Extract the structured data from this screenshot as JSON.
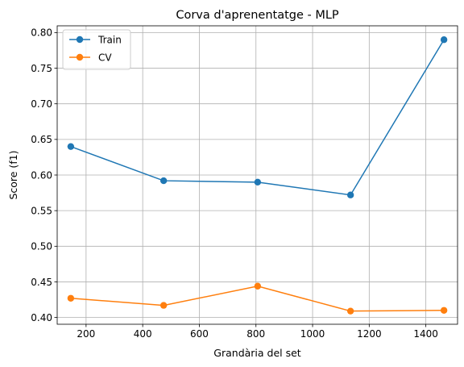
{
  "chart_data": {
    "type": "line",
    "title": "Corva d'aprenentatge - MLP",
    "xlabel": "Grandària del set",
    "ylabel": "Score (f1)",
    "xlim": [
      98,
      1512
    ],
    "ylim": [
      0.3905,
      0.8095
    ],
    "xticks": [
      200,
      400,
      600,
      800,
      1000,
      1200,
      1400
    ],
    "yticks": [
      0.4,
      0.45,
      0.5,
      0.55,
      0.6,
      0.65,
      0.7,
      0.75,
      0.8
    ],
    "grid": true,
    "legend_position": "upper-left",
    "x": [
      146,
      474,
      806,
      1134,
      1464
    ],
    "series": [
      {
        "name": "Train",
        "color": "#1f77b4",
        "values": [
          0.64,
          0.592,
          0.59,
          0.572,
          0.79
        ]
      },
      {
        "name": "CV",
        "color": "#ff7f0e",
        "values": [
          0.427,
          0.417,
          0.444,
          0.409,
          0.41
        ]
      }
    ]
  }
}
